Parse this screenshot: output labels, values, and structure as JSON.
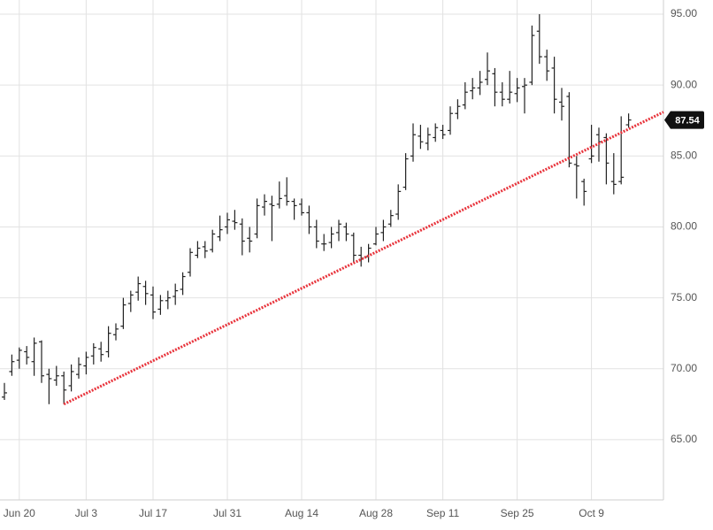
{
  "chart_data": {
    "type": "ohlc",
    "categories": [
      null,
      null,
      "Jun 20",
      null,
      null,
      null,
      null,
      null,
      null,
      null,
      null,
      "Jul 3",
      null,
      null,
      null,
      null,
      null,
      null,
      null,
      null,
      "Jul 17",
      null,
      null,
      null,
      null,
      null,
      null,
      null,
      null,
      null,
      "Jul 31",
      null,
      null,
      null,
      null,
      null,
      null,
      null,
      null,
      null,
      "Aug 14",
      null,
      null,
      null,
      null,
      null,
      null,
      null,
      null,
      null,
      "Aug 28",
      null,
      null,
      null,
      null,
      null,
      null,
      null,
      null,
      "Sep 11",
      null,
      null,
      null,
      null,
      null,
      null,
      null,
      null,
      null,
      "Sep 25",
      null,
      null,
      null,
      null,
      null,
      null,
      null,
      null,
      null,
      "Oct 9",
      null,
      null,
      null,
      null,
      null
    ],
    "series": [
      {
        "color": "#222222",
        "open": [
          68.0,
          69.8,
          70.6,
          71.2,
          70.5,
          71.9,
          69.6,
          69.2,
          69.5,
          68.8,
          69.6,
          70.2,
          70.9,
          71.4,
          71.2,
          72.4,
          73.0,
          74.6,
          75.4,
          75.8,
          75.2,
          74.2,
          74.8,
          75.1,
          75.6,
          76.8,
          78.0,
          78.6,
          78.4,
          79.3,
          80.0,
          80.4,
          80.2,
          79.2,
          79.5,
          81.4,
          81.6,
          81.6,
          82.2,
          81.8,
          81.6,
          81.0,
          80.0,
          78.8,
          78.9,
          79.6,
          80.0,
          79.4,
          78.0,
          77.9,
          78.8,
          79.6,
          80.2,
          80.9,
          82.8,
          85.0,
          86.4,
          85.9,
          86.3,
          86.8,
          86.8,
          88.0,
          88.6,
          89.6,
          89.8,
          90.4,
          90.8,
          89.5,
          89.0,
          89.4,
          89.9,
          90.2,
          93.8,
          92.0,
          91.2,
          88.8,
          89.2,
          84.4,
          83.2,
          84.8,
          86.5,
          86.3,
          83.2,
          83.2,
          87.2
        ],
        "high": [
          69.0,
          71.0,
          71.5,
          71.6,
          72.2,
          72.0,
          70.0,
          70.2,
          69.8,
          70.3,
          70.8,
          71.2,
          71.8,
          71.9,
          73.0,
          73.2,
          75.0,
          75.5,
          76.5,
          76.2,
          75.8,
          75.2,
          75.5,
          76.0,
          76.8,
          78.5,
          79.0,
          79.0,
          79.8,
          80.8,
          81.0,
          81.2,
          80.6,
          80.0,
          82.0,
          82.3,
          82.2,
          83.2,
          83.5,
          82.0,
          82.0,
          81.5,
          80.5,
          79.5,
          80.0,
          80.5,
          80.3,
          79.6,
          78.6,
          78.8,
          80.0,
          80.5,
          81.2,
          83.0,
          85.2,
          87.3,
          87.2,
          87.0,
          87.3,
          87.2,
          88.5,
          89.0,
          90.2,
          90.5,
          91.0,
          92.3,
          91.2,
          90.2,
          91.0,
          90.5,
          90.5,
          94.2,
          95.0,
          92.5,
          92.0,
          89.8,
          89.5,
          85.0,
          83.4,
          87.2,
          87.0,
          86.6,
          85.2,
          87.8,
          88.0
        ],
        "low": [
          67.8,
          69.5,
          70.0,
          70.3,
          69.5,
          69.0,
          67.5,
          68.8,
          67.5,
          68.4,
          69.3,
          69.6,
          70.3,
          70.5,
          70.8,
          72.0,
          72.8,
          74.0,
          74.8,
          74.5,
          73.5,
          73.8,
          74.2,
          74.5,
          75.2,
          76.5,
          77.8,
          77.8,
          78.2,
          79.0,
          79.5,
          79.8,
          78.0,
          78.2,
          79.2,
          80.8,
          79.0,
          81.3,
          81.5,
          80.5,
          80.8,
          79.5,
          78.5,
          78.3,
          78.5,
          79.0,
          79.0,
          77.5,
          77.2,
          77.5,
          78.7,
          79.0,
          80.0,
          80.5,
          82.6,
          84.6,
          85.5,
          85.4,
          86.0,
          86.2,
          86.5,
          87.6,
          88.3,
          89.0,
          89.3,
          90.0,
          88.5,
          88.5,
          88.7,
          88.8,
          88.0,
          90.0,
          91.5,
          90.3,
          88.0,
          87.5,
          84.2,
          82.0,
          81.5,
          84.5,
          84.6,
          83.0,
          82.3,
          83.0,
          87.0
        ],
        "close": [
          68.3,
          70.5,
          71.3,
          70.8,
          71.8,
          69.5,
          69.3,
          69.5,
          68.5,
          69.8,
          70.3,
          70.8,
          71.5,
          71.0,
          72.5,
          72.8,
          74.5,
          75.2,
          76.0,
          75.3,
          74.0,
          74.8,
          75.0,
          75.5,
          76.5,
          78.2,
          78.5,
          78.3,
          79.5,
          79.8,
          80.5,
          80.3,
          79.0,
          79.0,
          81.5,
          81.8,
          81.5,
          82.0,
          81.8,
          81.5,
          81.0,
          80.0,
          79.0,
          78.8,
          79.5,
          80.2,
          79.5,
          78.0,
          77.8,
          78.5,
          79.5,
          80.0,
          80.8,
          82.5,
          84.8,
          86.5,
          86.0,
          86.5,
          87.0,
          86.5,
          88.0,
          88.5,
          89.5,
          89.8,
          90.2,
          91.0,
          89.5,
          89.0,
          89.5,
          89.8,
          90.0,
          93.5,
          92.0,
          91.0,
          89.0,
          88.5,
          84.5,
          84.3,
          82.5,
          85.0,
          86.0,
          84.5,
          83.0,
          83.5,
          87.54
        ]
      }
    ],
    "ylim": [
      60.75,
      96.0
    ],
    "yticks": [
      {
        "value": 65,
        "label": "65.00"
      },
      {
        "value": 70,
        "label": "70.00"
      },
      {
        "value": 75,
        "label": "75.00"
      },
      {
        "value": 80,
        "label": "80.00"
      },
      {
        "value": 85,
        "label": "85.00"
      },
      {
        "value": 90,
        "label": "90.00"
      },
      {
        "value": 95,
        "label": "95.00"
      }
    ],
    "grid": true,
    "trendline": {
      "points": [
        [
          8,
          67.5
        ],
        [
          84,
          86.9
        ]
      ],
      "color": "#e8343c"
    },
    "last_price": 87.54
  }
}
